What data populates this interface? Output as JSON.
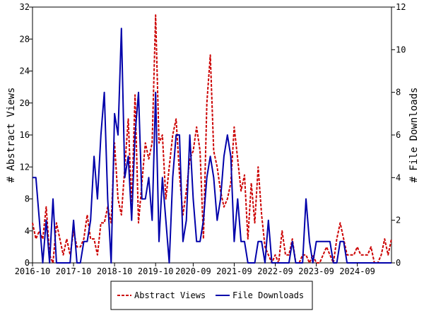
{
  "chart_data": {
    "type": "line",
    "title": "",
    "x_tick_labels": [
      "2016-10",
      "2017-10",
      "2018-10",
      "2019-10",
      "2020-09",
      "2021-09",
      "2022-09",
      "2023-09",
      "2024-09"
    ],
    "x_range": [
      "2016-10",
      "2025-07"
    ],
    "y_left": {
      "label": "# Abstract Views",
      "range": [
        0,
        32
      ],
      "ticks": [
        0,
        4,
        8,
        12,
        16,
        20,
        24,
        28,
        32
      ]
    },
    "y_right": {
      "label": "# File Downloads",
      "range": [
        0,
        12
      ],
      "ticks": [
        0,
        2,
        4,
        6,
        8,
        10,
        12
      ]
    },
    "legend": {
      "position": "bottom"
    },
    "grid": false,
    "series": [
      {
        "name": "Abstract Views",
        "axis": "left",
        "color": "#cc0000",
        "style": "dashed",
        "x": [
          "2016-10",
          "2016-11",
          "2016-12",
          "2017-01",
          "2017-02",
          "2017-03",
          "2017-04",
          "2017-05",
          "2017-06",
          "2017-07",
          "2017-08",
          "2017-09",
          "2017-10",
          "2017-11",
          "2017-12",
          "2018-01",
          "2018-02",
          "2018-03",
          "2018-04",
          "2018-05",
          "2018-06",
          "2018-07",
          "2018-08",
          "2018-09",
          "2018-10",
          "2018-11",
          "2018-12",
          "2019-01",
          "2019-02",
          "2019-03",
          "2019-04",
          "2019-05",
          "2019-06",
          "2019-07",
          "2019-08",
          "2019-09",
          "2019-10",
          "2019-11",
          "2019-12",
          "2020-01",
          "2020-02",
          "2020-03",
          "2020-04",
          "2020-05",
          "2020-06",
          "2020-07",
          "2020-08",
          "2020-09",
          "2020-10",
          "2020-11",
          "2020-12",
          "2021-01",
          "2021-02",
          "2021-03",
          "2021-04",
          "2021-05",
          "2021-06",
          "2021-07",
          "2021-08",
          "2021-09",
          "2021-10",
          "2021-11",
          "2021-12",
          "2022-01",
          "2022-02",
          "2022-03",
          "2022-04",
          "2022-05",
          "2022-06",
          "2022-07",
          "2022-08",
          "2022-09",
          "2022-10",
          "2022-11",
          "2022-12",
          "2023-01",
          "2023-02",
          "2023-03",
          "2023-04",
          "2023-05",
          "2023-06",
          "2023-07",
          "2023-08",
          "2023-09",
          "2023-10",
          "2023-11",
          "2023-12",
          "2024-01",
          "2024-02",
          "2024-03",
          "2024-04",
          "2024-05",
          "2024-06",
          "2024-07",
          "2024-08",
          "2024-09",
          "2024-10",
          "2024-11",
          "2024-12",
          "2025-01",
          "2025-02",
          "2025-03",
          "2025-04",
          "2025-05",
          "2025-06",
          "2025-07"
        ],
        "values": [
          5,
          3,
          4,
          3,
          7,
          1,
          0,
          5,
          3,
          1,
          3,
          1,
          4,
          2,
          2,
          3,
          6,
          3,
          3,
          1,
          5,
          5,
          7,
          5,
          15,
          8,
          6,
          12,
          18,
          7,
          21,
          5,
          10,
          15,
          13,
          15,
          31,
          15,
          16,
          8,
          12,
          16,
          18,
          11,
          6,
          9,
          13,
          14,
          17,
          14,
          3,
          20,
          26,
          14,
          12,
          9,
          7,
          8,
          10,
          17,
          13,
          9,
          11,
          3,
          10,
          5,
          12,
          6,
          2,
          1,
          0,
          1,
          0,
          4,
          1,
          1,
          3,
          0,
          0,
          1,
          1,
          0,
          1,
          0,
          0,
          1,
          2,
          1,
          0,
          3,
          5,
          3,
          1,
          1,
          1,
          2,
          1,
          1,
          1,
          2,
          0,
          0,
          1,
          3,
          1,
          3
        ]
      },
      {
        "name": "File Downloads",
        "axis": "right",
        "color": "#0000aa",
        "style": "solid",
        "x": [
          "2016-10",
          "2016-11",
          "2016-12",
          "2017-01",
          "2017-02",
          "2017-03",
          "2017-04",
          "2017-05",
          "2017-06",
          "2017-07",
          "2017-08",
          "2017-09",
          "2017-10",
          "2017-11",
          "2017-12",
          "2018-01",
          "2018-02",
          "2018-03",
          "2018-04",
          "2018-05",
          "2018-06",
          "2018-07",
          "2018-08",
          "2018-09",
          "2018-10",
          "2018-11",
          "2018-12",
          "2019-01",
          "2019-02",
          "2019-03",
          "2019-04",
          "2019-05",
          "2019-06",
          "2019-07",
          "2019-08",
          "2019-09",
          "2019-10",
          "2019-11",
          "2019-12",
          "2020-01",
          "2020-02",
          "2020-03",
          "2020-04",
          "2020-05",
          "2020-06",
          "2020-07",
          "2020-08",
          "2020-09",
          "2020-10",
          "2020-11",
          "2020-12",
          "2021-01",
          "2021-02",
          "2021-03",
          "2021-04",
          "2021-05",
          "2021-06",
          "2021-07",
          "2021-08",
          "2021-09",
          "2021-10",
          "2021-11",
          "2021-12",
          "2022-01",
          "2022-02",
          "2022-03",
          "2022-04",
          "2022-05",
          "2022-06",
          "2022-07",
          "2022-08",
          "2022-09",
          "2022-10",
          "2022-11",
          "2022-12",
          "2023-01",
          "2023-02",
          "2023-03",
          "2023-04",
          "2023-05",
          "2023-06",
          "2023-07",
          "2023-08",
          "2023-09",
          "2023-10",
          "2023-11",
          "2023-12",
          "2024-01",
          "2024-02",
          "2024-03",
          "2024-04",
          "2024-05",
          "2024-06",
          "2024-07",
          "2024-08",
          "2024-09",
          "2024-10",
          "2024-11",
          "2024-12",
          "2025-01",
          "2025-02",
          "2025-03",
          "2025-04",
          "2025-05",
          "2025-06",
          "2025-07"
        ],
        "values": [
          4,
          4,
          2,
          0,
          2,
          0,
          3,
          0,
          0,
          0,
          0,
          0,
          2,
          0,
          0,
          1,
          1,
          2,
          5,
          3,
          6,
          8,
          3,
          0,
          7,
          6,
          11,
          4,
          5,
          2,
          6,
          8,
          3,
          3,
          4,
          2,
          8,
          1,
          4,
          2,
          0,
          4,
          6,
          6,
          1,
          2,
          6,
          3,
          1,
          1,
          2,
          4,
          5,
          4,
          2,
          3,
          5,
          6,
          5,
          1,
          3,
          1,
          1,
          0,
          0,
          0,
          1,
          1,
          0,
          2,
          0,
          0,
          0,
          0,
          0,
          0,
          1,
          0,
          0,
          0,
          3,
          1,
          0,
          1,
          1,
          1,
          1,
          1,
          0,
          0,
          1,
          1,
          0,
          0,
          0,
          0,
          0,
          0,
          0,
          0,
          0,
          0,
          0,
          0,
          0,
          0
        ]
      }
    ]
  }
}
